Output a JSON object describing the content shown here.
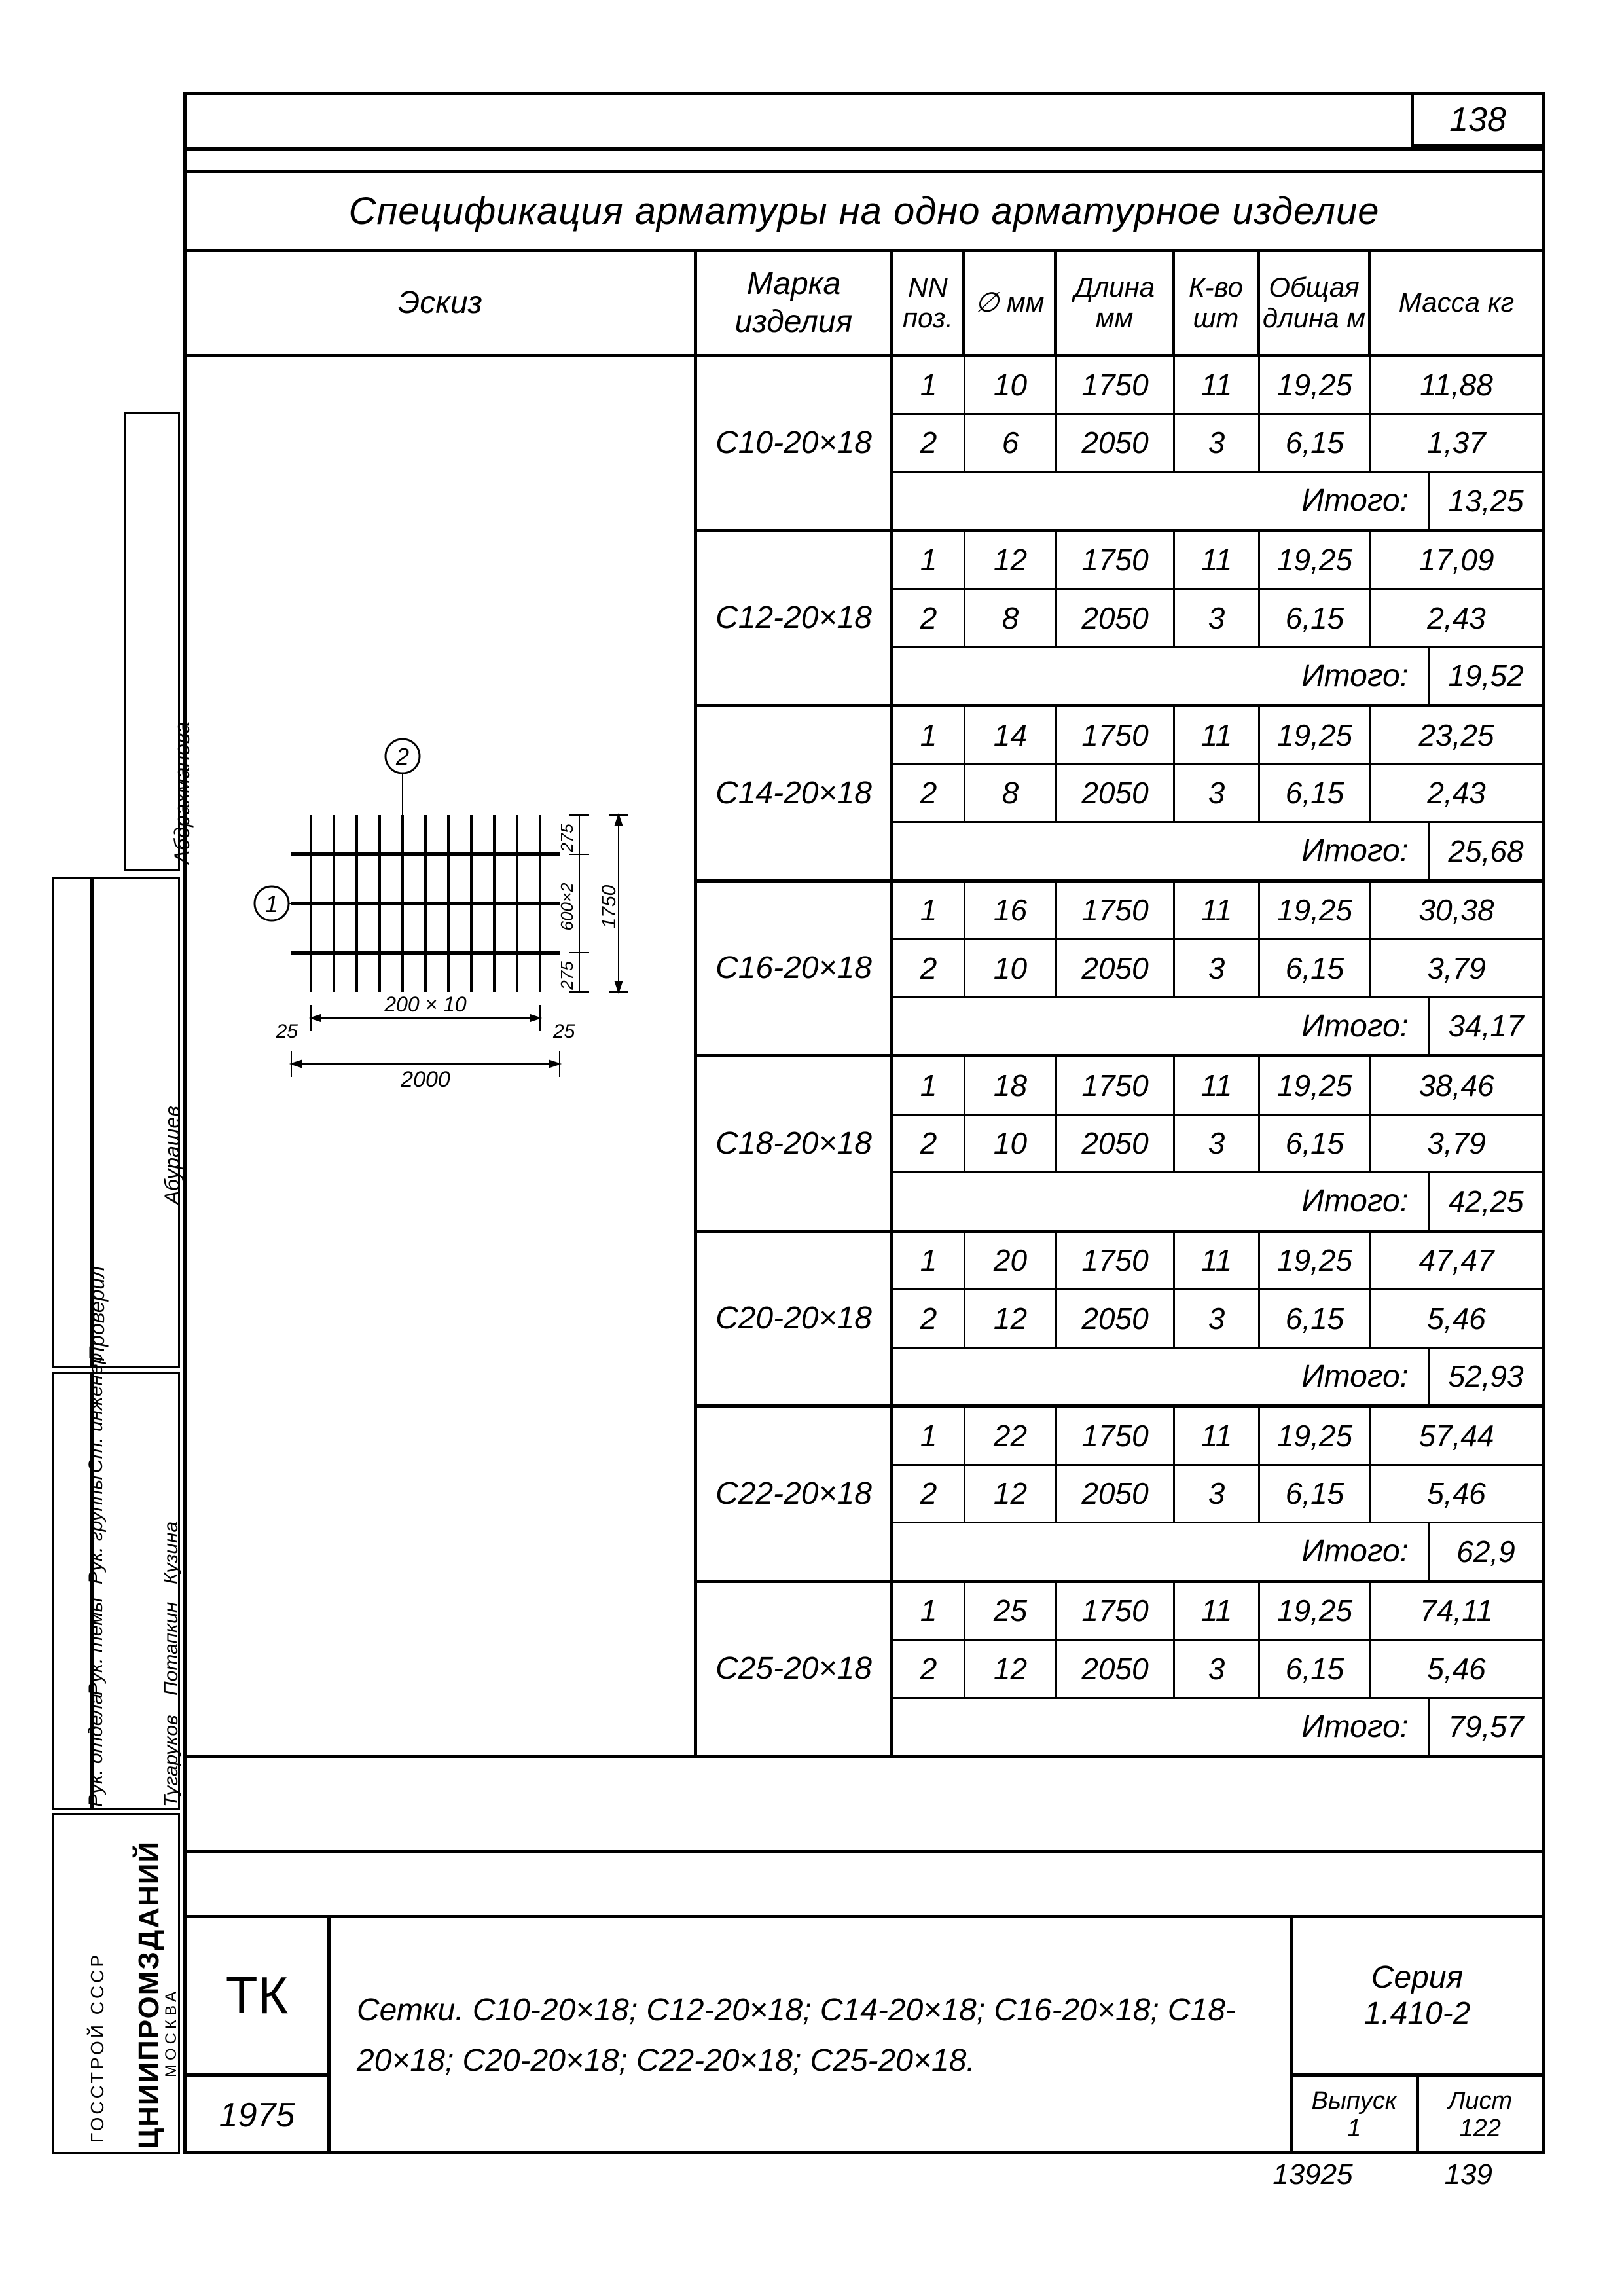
{
  "page_number": "138",
  "title": "Спецификация арматуры на одно арматурное изделие",
  "headers": {
    "eskiz": "Эскиз",
    "marka": "Марка изделия",
    "nn": "NN поз.",
    "phi": "∅ мм",
    "dlina": "Длина мм",
    "kvo": "К-во шт",
    "total_len": "Общая длина м",
    "mass": "Масса кг"
  },
  "itogo_label": "Итого:",
  "groups": [
    {
      "marka": "С10-20×18",
      "rows": [
        {
          "nn": "1",
          "phi": "10",
          "len": "1750",
          "kvo": "11",
          "total": "19,25",
          "mass": "11,88"
        },
        {
          "nn": "2",
          "phi": "6",
          "len": "2050",
          "kvo": "3",
          "total": "6,15",
          "mass": "1,37"
        }
      ],
      "itogo": "13,25"
    },
    {
      "marka": "С12-20×18",
      "rows": [
        {
          "nn": "1",
          "phi": "12",
          "len": "1750",
          "kvo": "11",
          "total": "19,25",
          "mass": "17,09"
        },
        {
          "nn": "2",
          "phi": "8",
          "len": "2050",
          "kvo": "3",
          "total": "6,15",
          "mass": "2,43"
        }
      ],
      "itogo": "19,52"
    },
    {
      "marka": "С14-20×18",
      "rows": [
        {
          "nn": "1",
          "phi": "14",
          "len": "1750",
          "kvo": "11",
          "total": "19,25",
          "mass": "23,25"
        },
        {
          "nn": "2",
          "phi": "8",
          "len": "2050",
          "kvo": "3",
          "total": "6,15",
          "mass": "2,43"
        }
      ],
      "itogo": "25,68"
    },
    {
      "marka": "С16-20×18",
      "rows": [
        {
          "nn": "1",
          "phi": "16",
          "len": "1750",
          "kvo": "11",
          "total": "19,25",
          "mass": "30,38"
        },
        {
          "nn": "2",
          "phi": "10",
          "len": "2050",
          "kvo": "3",
          "total": "6,15",
          "mass": "3,79"
        }
      ],
      "itogo": "34,17"
    },
    {
      "marka": "С18-20×18",
      "rows": [
        {
          "nn": "1",
          "phi": "18",
          "len": "1750",
          "kvo": "11",
          "total": "19,25",
          "mass": "38,46"
        },
        {
          "nn": "2",
          "phi": "10",
          "len": "2050",
          "kvo": "3",
          "total": "6,15",
          "mass": "3,79"
        }
      ],
      "itogo": "42,25"
    },
    {
      "marka": "С20-20×18",
      "rows": [
        {
          "nn": "1",
          "phi": "20",
          "len": "1750",
          "kvo": "11",
          "total": "19,25",
          "mass": "47,47"
        },
        {
          "nn": "2",
          "phi": "12",
          "len": "2050",
          "kvo": "3",
          "total": "6,15",
          "mass": "5,46"
        }
      ],
      "itogo": "52,93"
    },
    {
      "marka": "С22-20×18",
      "rows": [
        {
          "nn": "1",
          "phi": "22",
          "len": "1750",
          "kvo": "11",
          "total": "19,25",
          "mass": "57,44"
        },
        {
          "nn": "2",
          "phi": "12",
          "len": "2050",
          "kvo": "3",
          "total": "6,15",
          "mass": "5,46"
        }
      ],
      "itogo": "62,9"
    },
    {
      "marka": "С25-20×18",
      "rows": [
        {
          "nn": "1",
          "phi": "25",
          "len": "1750",
          "kvo": "11",
          "total": "19,25",
          "mass": "74,11"
        },
        {
          "nn": "2",
          "phi": "12",
          "len": "2050",
          "kvo": "3",
          "total": "6,15",
          "mass": "5,46"
        }
      ],
      "itogo": "79,57"
    }
  ],
  "sketch": {
    "label_1": "1",
    "label_2": "2",
    "dim_200x10": "200 × 10",
    "dim_2000": "2000",
    "dim_25_left": "25",
    "dim_25_right": "25",
    "dim_275_top": "275",
    "dim_275_bot": "275",
    "dim_600x2": "600×2",
    "dim_1750": "1750"
  },
  "title_block": {
    "tk": "ТК",
    "year": "1975",
    "description": "Сетки. С10-20×18; С12-20×18; С14-20×18; С16-20×18; С18-20×18; С20-20×18; С22-20×18; С25-20×18.",
    "series_label": "Серия",
    "series": "1.410-2",
    "vypusk_label": "Выпуск",
    "vypusk": "1",
    "list_label": "Лист",
    "list": "122"
  },
  "side_stamp": {
    "roles": [
      "Рук. отдела",
      "Рук. темы",
      "Рук. группы",
      "Ст. инженер",
      "Проверил"
    ],
    "names": [
      "Тугаруков",
      "Потапкин",
      "Кузина",
      "Абурашев",
      "Абдрахманова"
    ],
    "org_top": "ГОССТРОЙ СССР",
    "org_main": "ЦНИИПРОМЗДАНИЙ",
    "org_bottom": "МОСКВА"
  },
  "footer": {
    "left_num": "13925",
    "right_num": "139"
  },
  "style": {
    "line_color": "#000000",
    "bg_color": "#ffffff",
    "font_main": "italic cursive",
    "font_size_cell": 46,
    "font_size_header": 48,
    "font_size_title": 58,
    "border_thick": 5,
    "border_thin": 3
  }
}
